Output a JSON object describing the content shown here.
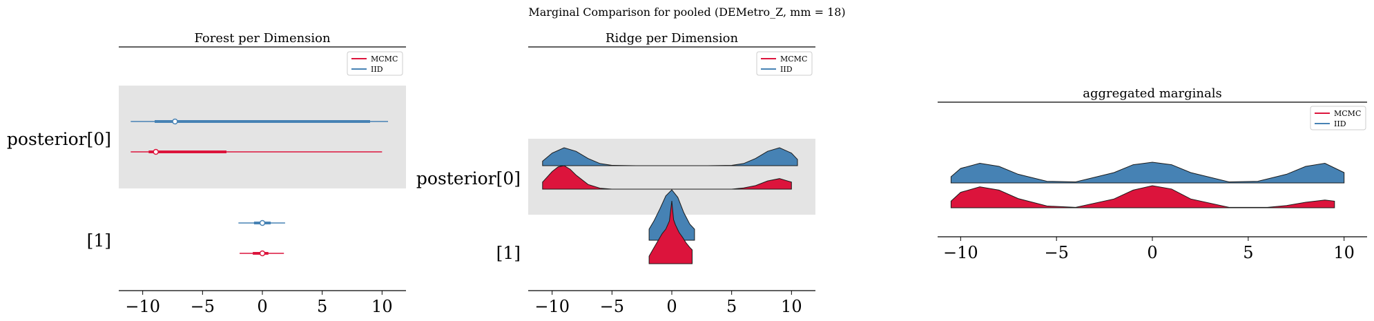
{
  "suptitle": "Marginal Comparison for pooled (DEMetro_Z, mm = 18)",
  "colors": {
    "mcmc": "#dc143c",
    "iid": "#4682b4",
    "band": "#e4e4e4"
  },
  "chart_data": [
    {
      "type": "forest",
      "title": "Forest per Dimension",
      "xlim": [
        -12,
        12
      ],
      "xticks": [
        -10,
        -5,
        0,
        5,
        10
      ],
      "xtick_labels": [
        "−10",
        "−5",
        "0",
        "5",
        "10"
      ],
      "ylabels": [
        "posterior[0]",
        "[1]"
      ],
      "legend": {
        "position": "top-right",
        "entries": [
          "MCMC",
          "IID"
        ]
      },
      "series": [
        {
          "name": "IID",
          "color": "#4682b4",
          "intervals": [
            {
              "dim": "posterior[0]",
              "hdi94": [
                -11.0,
                10.5
              ],
              "hdi50": [
                -9.0,
                9.0
              ],
              "median": -7.3
            },
            {
              "dim": "[1]",
              "hdi94": [
                -2.0,
                1.9
              ],
              "hdi50": [
                -0.7,
                0.7
              ],
              "median": 0.0
            }
          ]
        },
        {
          "name": "MCMC",
          "color": "#dc143c",
          "intervals": [
            {
              "dim": "posterior[0]",
              "hdi94": [
                -11.0,
                10.0
              ],
              "hdi50": [
                -9.5,
                -3.0
              ],
              "median": -8.9
            },
            {
              "dim": "[1]",
              "hdi94": [
                -1.9,
                1.8
              ],
              "hdi50": [
                -0.8,
                0.5
              ],
              "median": 0.0
            }
          ]
        }
      ]
    },
    {
      "type": "ridgeplot",
      "title": "Ridge per Dimension",
      "xlim": [
        -12,
        12
      ],
      "xticks": [
        -10,
        -5,
        0,
        5,
        10
      ],
      "xtick_labels": [
        "−10",
        "−5",
        "0",
        "5",
        "10"
      ],
      "ylabels": [
        "posterior[0]",
        "[1]"
      ],
      "legend": {
        "position": "top-right",
        "entries": [
          "MCMC",
          "IID"
        ]
      },
      "series": [
        {
          "name": "IID",
          "color": "#4682b4",
          "ridges": [
            {
              "dim": "posterior[0]",
              "x": [
                -10.8,
                -10,
                -9,
                -8,
                -7,
                -6,
                -5,
                -3,
                0,
                3,
                5,
                6,
                7,
                8,
                9,
                10,
                10.5
              ],
              "density": [
                0.25,
                0.7,
                1.0,
                0.8,
                0.4,
                0.12,
                0.02,
                0.0,
                0.0,
                0.0,
                0.02,
                0.12,
                0.4,
                0.8,
                1.0,
                0.7,
                0.35
              ]
            },
            {
              "dim": "[1]",
              "x": [
                -1.9,
                -1.5,
                -1.0,
                -0.5,
                0.0,
                0.5,
                1.0,
                1.5,
                1.9
              ],
              "density": [
                0.22,
                0.38,
                0.62,
                0.88,
                1.0,
                0.85,
                0.55,
                0.32,
                0.22
              ]
            }
          ]
        },
        {
          "name": "MCMC",
          "color": "#dc143c",
          "ridges": [
            {
              "dim": "posterior[0]",
              "x": [
                -10.8,
                -10,
                -9.5,
                -9,
                -8.5,
                -8,
                -7,
                -6,
                -5,
                -3,
                0,
                3,
                5,
                6,
                7,
                8,
                9,
                10
              ],
              "density": [
                0.3,
                0.75,
                0.95,
                1.0,
                0.85,
                0.6,
                0.2,
                0.04,
                0.0,
                0.0,
                0.0,
                0.0,
                0.0,
                0.05,
                0.15,
                0.35,
                0.45,
                0.3
              ]
            },
            {
              "dim": "[1]",
              "x": [
                -1.9,
                -1.6,
                -1.2,
                -0.8,
                -0.5,
                -0.2,
                0.0,
                0.15,
                0.3,
                0.6,
                0.9,
                1.2,
                1.5,
                1.7
              ],
              "density": [
                0.12,
                0.22,
                0.35,
                0.48,
                0.55,
                0.68,
                1.0,
                0.7,
                0.62,
                0.5,
                0.42,
                0.33,
                0.26,
                0.22
              ]
            }
          ]
        }
      ]
    },
    {
      "type": "ridgeplot",
      "title": "aggregated marginals",
      "xlim": [
        -11.2,
        11.2
      ],
      "xticks": [
        -10,
        -5,
        0,
        5,
        10
      ],
      "xtick_labels": [
        "−10",
        "−5",
        "0",
        "5",
        "10"
      ],
      "legend": {
        "position": "top-right",
        "entries": [
          "MCMC",
          "IID"
        ]
      },
      "series": [
        {
          "name": "IID",
          "color": "#4682b4",
          "x": [
            -10.5,
            -10,
            -9,
            -8,
            -7,
            -5.5,
            -4,
            -2,
            -1,
            0,
            1,
            2,
            4,
            5.5,
            7,
            8,
            9,
            10
          ],
          "density": [
            0.3,
            0.7,
            0.95,
            0.8,
            0.42,
            0.08,
            0.05,
            0.5,
            0.88,
            1.0,
            0.88,
            0.5,
            0.05,
            0.08,
            0.42,
            0.8,
            0.95,
            0.5
          ]
        },
        {
          "name": "MCMC",
          "color": "#dc143c",
          "x": [
            -10.5,
            -10,
            -9,
            -8,
            -7,
            -5.5,
            -4,
            -2,
            -1,
            0,
            1,
            2,
            4,
            6,
            7,
            8,
            9,
            9.5
          ],
          "density": [
            0.3,
            0.7,
            0.95,
            0.8,
            0.42,
            0.08,
            0.02,
            0.4,
            0.8,
            1.0,
            0.85,
            0.4,
            0.02,
            0.02,
            0.1,
            0.25,
            0.35,
            0.3
          ]
        }
      ]
    }
  ]
}
